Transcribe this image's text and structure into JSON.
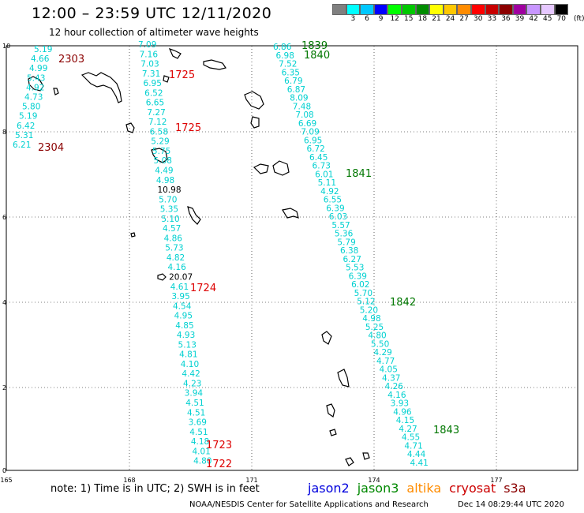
{
  "title": "12:00 – 23:59 UTC 12/11/2020",
  "subtitle": "12 hour collection of altimeter wave heights",
  "legend": {
    "labels": [
      "",
      "3",
      "6",
      "9",
      "12",
      "15",
      "18",
      "21",
      "24",
      "27",
      "30",
      "33",
      "36",
      "39",
      "42",
      "45",
      "70"
    ],
    "colors": [
      "#808080",
      "#00ffff",
      "#00c8ff",
      "#0000ff",
      "#00ff00",
      "#00c800",
      "#008c00",
      "#ffff00",
      "#ffc800",
      "#ff8c00",
      "#ff0000",
      "#c80000",
      "#8c0000",
      "#a000a0",
      "#c896ff",
      "#e6c8ff",
      "#000000"
    ],
    "unit": "(ft)"
  },
  "axes": {
    "x_ticks": [
      "165",
      "168",
      "171",
      "174",
      "177"
    ],
    "y_ticks": [
      "0",
      "2",
      "4",
      "6",
      "8",
      "10"
    ]
  },
  "tracks": {
    "track_a": {
      "color": "#00d0d0",
      "values": [
        "5.19",
        "4.66",
        "4.99",
        "5.43",
        "4.92",
        "4.73",
        "5.80",
        "5.19",
        "6.42",
        "5.31",
        "6.21"
      ]
    },
    "track_b": {
      "color": "#00d0d0",
      "values": [
        "7.09",
        "7.16",
        "7.03",
        "7.31",
        "6.95",
        "6.52",
        "6.65",
        "7.27",
        "7.12",
        "6.58",
        "5.29",
        "5.75",
        "5.08",
        "4.49",
        "4.98",
        "10.98",
        "5.70",
        "5.35",
        "5.10",
        "4.57",
        "4.86",
        "5.73",
        "4.82",
        "4.16",
        "20.07",
        "4.61",
        "3.95",
        "4.54",
        "4.95",
        "4.85",
        "4.93",
        "5.13",
        "4.81",
        "4.10",
        "4.42",
        "4.23",
        "3.94",
        "4.51",
        "4.51",
        "3.69",
        "4.51",
        "4.18",
        "4.01",
        "4.80"
      ]
    },
    "track_c": {
      "color": "#00d0d0",
      "values": [
        "6.86",
        "6.98",
        "7.52",
        "6.35",
        "6.79",
        "6.87",
        "8.09",
        "7.48",
        "7.08",
        "6.69",
        "7.09",
        "6.95",
        "6.72",
        "6.45",
        "6.73",
        "6.01",
        "5.11",
        "4.92",
        "6.55",
        "6.39",
        "6.03",
        "5.57",
        "5.36",
        "5.79",
        "6.38",
        "6.27",
        "5.53",
        "6.39",
        "6.02",
        "5.70",
        "5.12",
        "5.20",
        "4.98",
        "5.25",
        "4.80",
        "5.50",
        "4.29",
        "4.77",
        "4.05",
        "4.37",
        "4.26",
        "4.16",
        "3.93",
        "4.96",
        "4.15",
        "4.27",
        "4.55",
        "4.71",
        "4.44",
        "4.41"
      ]
    }
  },
  "times": {
    "t2303": "2303",
    "t2304": "2304",
    "t1725a": "1725",
    "t1725b": "1725",
    "t1724": "1724",
    "t1723": "1723",
    "t1722": "1722",
    "t1839": "1839",
    "t1840": "1840",
    "t1841": "1841",
    "t1842": "1842",
    "t1843": "1843"
  },
  "note": "note:  1) Time is in UTC;  2) SWH is in feet",
  "satellites": [
    {
      "name": "jason2",
      "color": "#0000dd"
    },
    {
      "name": "jason3",
      "color": "#008800"
    },
    {
      "name": "altika",
      "color": "#ff8c00"
    },
    {
      "name": "cryosat",
      "color": "#cc0000"
    },
    {
      "name": "s3a",
      "color": "#8b0000"
    }
  ],
  "footer": "NOAA/NESDIS Center for Satellite Applications and Research",
  "footer_date": "Dec 14 08:29:44 UTC 2020"
}
